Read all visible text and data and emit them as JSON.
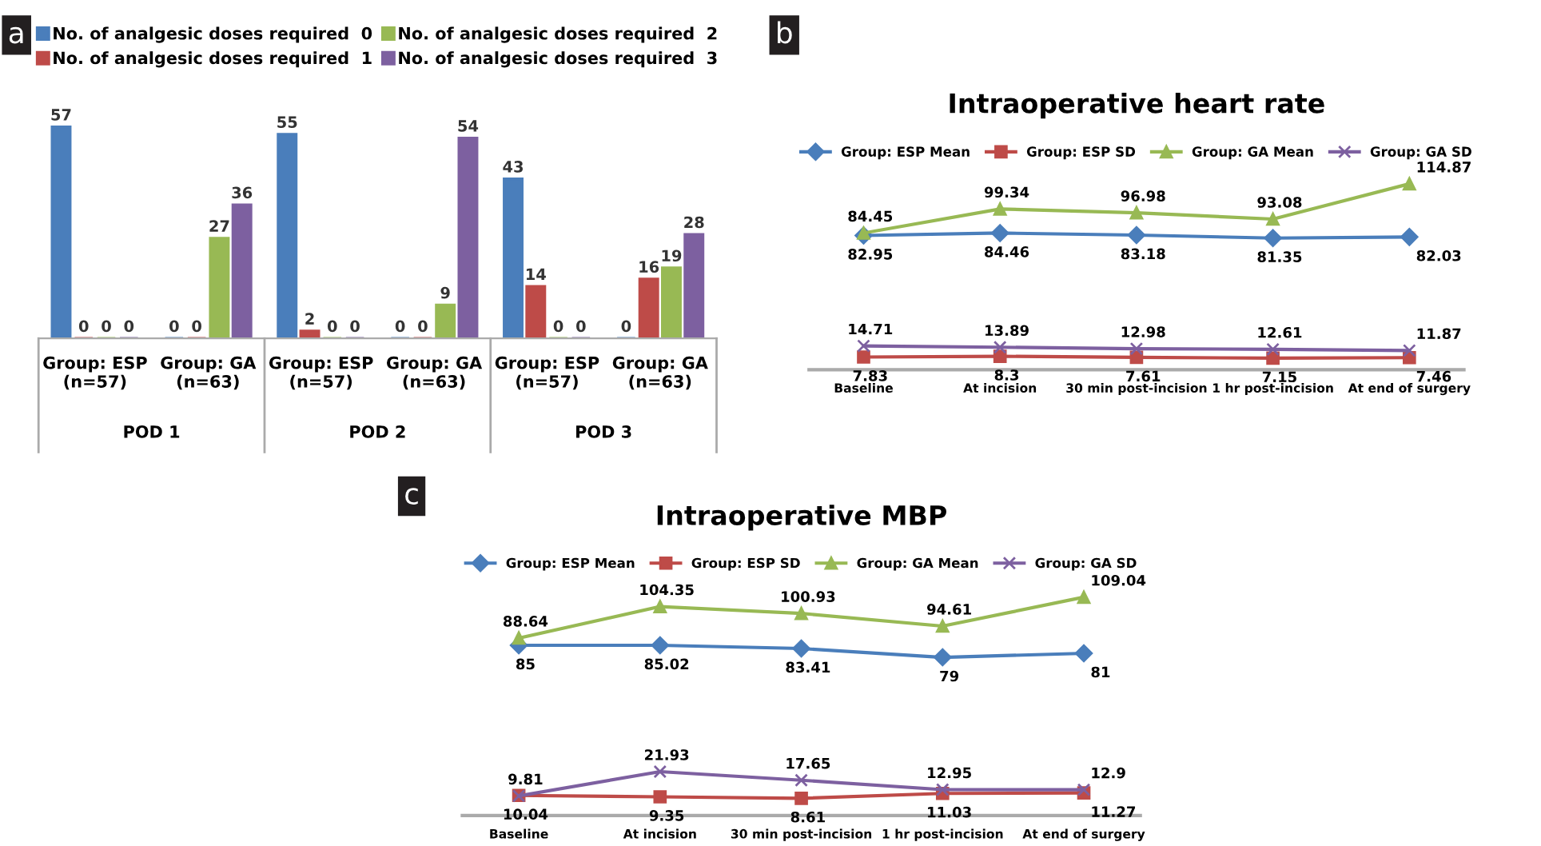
{
  "chart_data": [
    {
      "type": "bar",
      "annotations": [
        "a",
        "POD 1",
        "POD 2",
        "POD 3"
      ],
      "categories": [
        "Group: ESP\n(n=57)",
        "Group: GA\n(n=63)",
        "Group: ESP\n(n=57)",
        "Group: GA\n(n=63)",
        "Group: ESP\n(n=57)",
        "Group: GA\n(n=63)"
      ],
      "series": [
        {
          "name": "No. of analgesic doses required  0",
          "color": "#4a7ebb",
          "values": [
            57,
            0,
            55,
            0,
            43,
            0
          ]
        },
        {
          "name": "No. of analgesic doses required  1",
          "color": "#be4b48",
          "values": [
            0,
            0,
            2,
            0,
            14,
            16
          ]
        },
        {
          "name": "No. of analgesic doses required  2",
          "color": "#98b954",
          "values": [
            0,
            27,
            0,
            9,
            0,
            19
          ]
        },
        {
          "name": "No. of analgesic doses required  3",
          "color": "#7d60a0",
          "values": [
            0,
            36,
            0,
            54,
            0,
            28
          ]
        }
      ],
      "data_labels": true,
      "legend": "top",
      "grid": false
    },
    {
      "type": "line",
      "title": "Intraoperative heart rate",
      "annotations": [
        "b"
      ],
      "categories": [
        "Baseline",
        "At incision",
        "30 min post-incision",
        "1 hr post-incision",
        "At end of surgery"
      ],
      "series": [
        {
          "name": "Group: ESP Mean",
          "color": "#4a7ebb",
          "marker": "diamond",
          "values": [
            82.95,
            84.46,
            83.18,
            81.35,
            82.03
          ]
        },
        {
          "name": "Group: ESP SD",
          "color": "#be4b48",
          "marker": "square",
          "values": [
            7.83,
            8.3,
            7.61,
            7.15,
            7.46
          ]
        },
        {
          "name": "Group: GA Mean",
          "color": "#98b954",
          "marker": "triangle",
          "values": [
            84.45,
            99.34,
            96.98,
            93.08,
            114.87
          ]
        },
        {
          "name": "Group: GA SD",
          "color": "#7d60a0",
          "marker": "cross",
          "values": [
            14.71,
            13.89,
            12.98,
            12.61,
            11.87
          ]
        }
      ],
      "data_labels": true,
      "legend": "top",
      "grid": false
    },
    {
      "type": "line",
      "title": "Intraoperative MBP",
      "annotations": [
        "c"
      ],
      "categories": [
        "Baseline",
        "At incision",
        "30 min post-incision",
        "1 hr post-incision",
        "At end of surgery"
      ],
      "series": [
        {
          "name": "Group: ESP Mean",
          "color": "#4a7ebb",
          "marker": "diamond",
          "values": [
            85,
            85.02,
            83.41,
            79,
            81
          ]
        },
        {
          "name": "Group: ESP SD",
          "color": "#be4b48",
          "marker": "square",
          "values": [
            10.04,
            9.35,
            8.61,
            11.03,
            11.27
          ]
        },
        {
          "name": "Group: GA Mean",
          "color": "#98b954",
          "marker": "triangle",
          "values": [
            88.64,
            104.35,
            100.93,
            94.61,
            109.04
          ]
        },
        {
          "name": "Group: GA SD",
          "color": "#7d60a0",
          "marker": "cross",
          "values": [
            9.81,
            21.93,
            17.65,
            12.95,
            12.9
          ]
        }
      ],
      "data_labels": true,
      "legend": "top",
      "grid": false
    }
  ]
}
